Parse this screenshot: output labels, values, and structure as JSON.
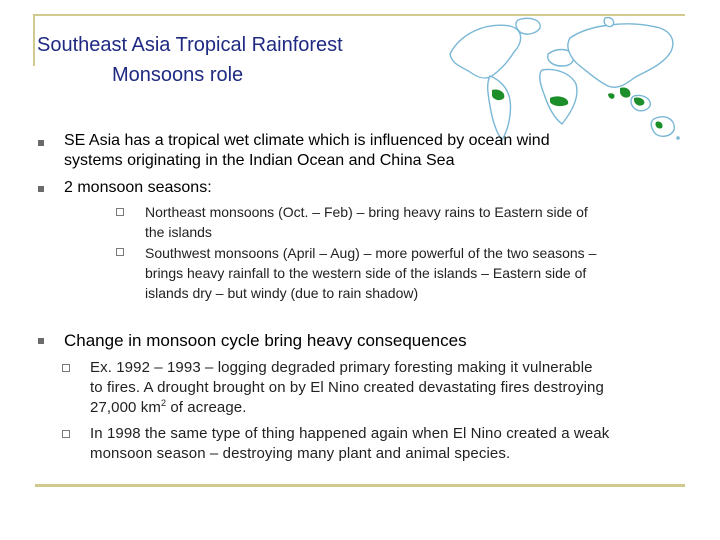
{
  "title": {
    "line1": "Southeast Asia Tropical Rainforest",
    "line2": "Monsoons role"
  },
  "colors": {
    "title": "#1f2a82",
    "rule": "#d2c98c",
    "rainforest": "#1c8f2a",
    "ocean_outline": "#79b7d6"
  },
  "map": {
    "icon": "world-map-rainforest-icon"
  },
  "bullets": {
    "b1": {
      "line1": "SE Asia has a tropical wet climate which is influenced by ocean wind",
      "line2": "systems originating in the Indian Ocean and China Sea"
    },
    "b2": {
      "line1": "2 monsoon seasons:"
    },
    "b2_sub1": {
      "line1": "Northeast monsoons (Oct. – Feb) – bring heavy rains to Eastern side of",
      "line2": "the islands"
    },
    "b2_sub2": {
      "line1": "Southwest monsoons (April – Aug) – more powerful of the two seasons –",
      "line2": "brings heavy rainfall to the western side of the islands – Eastern side of",
      "line3": "islands dry – but windy (due to rain shadow)"
    },
    "b3": {
      "line1": "Change in monsoon cycle bring heavy consequences"
    },
    "b3_sub1": {
      "line1": "Ex.  1992 – 1993 – logging degraded primary foresting making it vulnerable",
      "line2": "to fires.  A drought brought on by El Nino created devastating fires destroying",
      "line3_a": "27,000 km",
      "line3_sup": "2",
      "line3_b": " of acreage."
    },
    "b3_sub2": {
      "line1": "In 1998 the same type of thing happened again when El Nino created a weak",
      "line2": "monsoon season – destroying many plant and animal species."
    }
  }
}
